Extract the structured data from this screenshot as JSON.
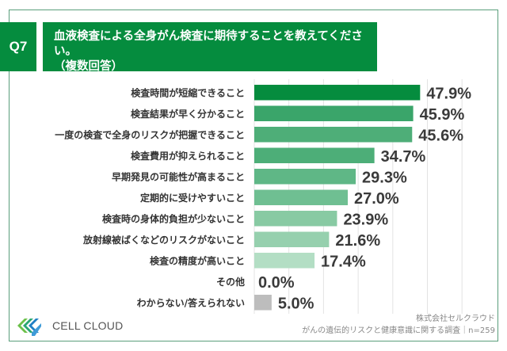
{
  "header": {
    "question_number": "Q7",
    "title": "血液検査による全身がん検査に期待することを教えてください。",
    "subtitle": "（複数回答）"
  },
  "chart_data": {
    "type": "bar",
    "orientation": "horizontal",
    "title": "血液検査による全身がん検査に期待することを教えてください。（複数回答）",
    "categories": [
      "検査時間が短縮できること",
      "検査結果が早く分かること",
      "一度の検査で全身のリスクが把握できること",
      "検査費用が抑えられること",
      "早期発見の可能性が高まること",
      "定期的に受けやすいこと",
      "検査時の身体的負担が少ないこと",
      "放射線被ばくなどのリスクがないこと",
      "検査の精度が高いこと",
      "その他",
      "わからない/答えられない"
    ],
    "values": [
      47.9,
      45.9,
      45.6,
      34.7,
      29.3,
      27.0,
      23.9,
      21.6,
      17.4,
      0.0,
      5.0
    ],
    "value_labels": [
      "47.9%",
      "45.9%",
      "45.6%",
      "34.7%",
      "29.3%",
      "27.0%",
      "23.9%",
      "21.6%",
      "17.4%",
      "0.0%",
      "5.0%"
    ],
    "unit": "%",
    "xlim": [
      0,
      70
    ],
    "grid_step": 10,
    "grid": true,
    "legend": "none",
    "colors": [
      "#058c3e",
      "#3aa56a",
      "#4eae78",
      "#4dae78",
      "#5fb786",
      "#6fbf92",
      "#88caa3",
      "#96d0ae",
      "#b3dec4",
      "#c4e6d2",
      "#bdbdbd"
    ]
  },
  "footer": {
    "logo_text": "CELL CLOUD",
    "company": "株式会社セルクラウド",
    "survey": "がんの遺伝的リスクと健康意識に関する調査｜n=259"
  },
  "colors": {
    "brand_green": "#058c3e",
    "frame": "#5a9e7c",
    "gridline": "#e3e3e3"
  }
}
